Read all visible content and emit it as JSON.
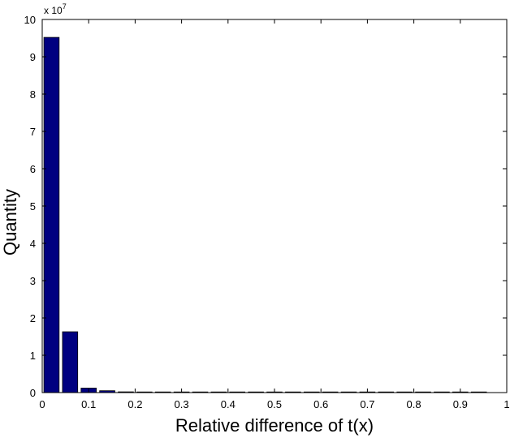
{
  "chart_data": {
    "type": "bar",
    "xlabel": "Relative difference of t(x)",
    "ylabel": "Quantity",
    "exponent_multiplier": "x 10",
    "exponent_power": "7",
    "xlim": [
      0,
      1
    ],
    "ylim": [
      0,
      10
    ],
    "xticks": [
      "0",
      "0.1",
      "0.2",
      "0.3",
      "0.4",
      "0.5",
      "0.6",
      "0.7",
      "0.8",
      "0.9",
      "1"
    ],
    "yticks": [
      "0",
      "1",
      "2",
      "3",
      "4",
      "5",
      "6",
      "7",
      "8",
      "9",
      "10"
    ],
    "bin_width": 0.04,
    "bar_color": "#000080",
    "x": [
      0.02,
      0.06,
      0.1,
      0.14,
      0.18,
      0.22,
      0.26,
      0.3,
      0.34,
      0.38,
      0.42,
      0.46,
      0.5,
      0.54,
      0.58,
      0.62,
      0.66,
      0.7,
      0.74,
      0.78,
      0.82,
      0.86,
      0.9,
      0.94
    ],
    "values": [
      9.52,
      1.63,
      0.12,
      0.05,
      0.02,
      0.01,
      0.01,
      0.01,
      0.01,
      0.01,
      0.01,
      0.01,
      0.01,
      0.01,
      0.01,
      0.01,
      0.01,
      0.01,
      0.01,
      0.01,
      0.01,
      0.01,
      0.01,
      0.01
    ],
    "grid": false,
    "legend": "none"
  }
}
